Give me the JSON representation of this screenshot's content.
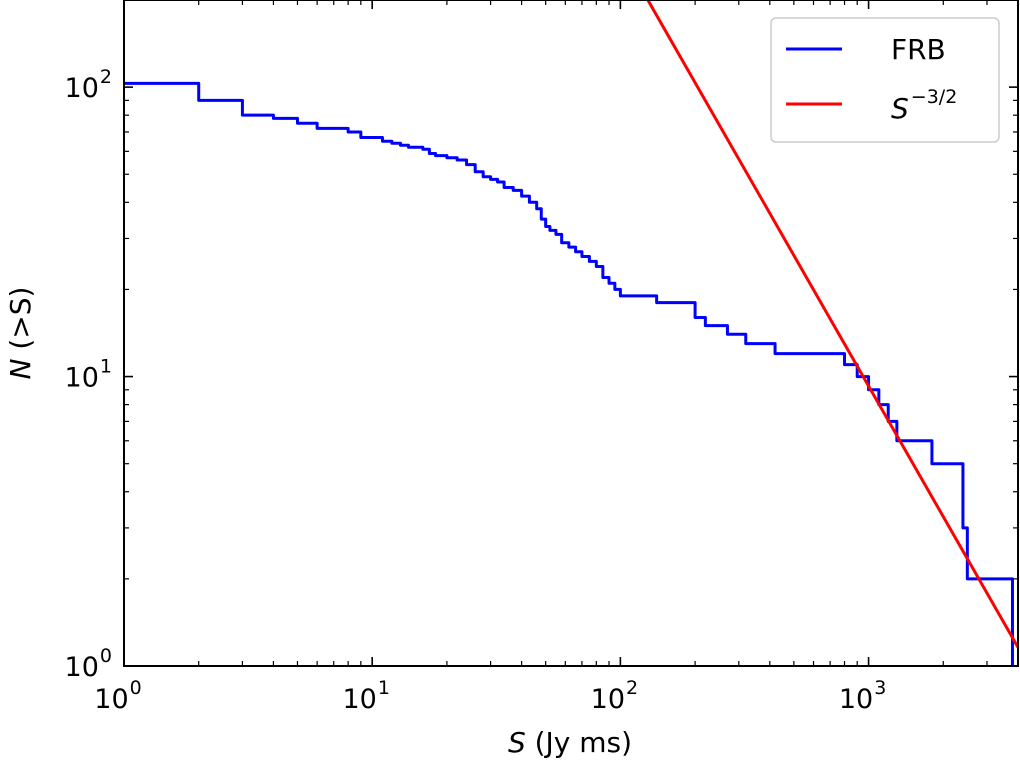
{
  "chart_data": {
    "type": "line",
    "xscale": "log",
    "yscale": "log",
    "xlim": [
      1,
      4000
    ],
    "ylim": [
      1,
      200
    ],
    "xlabel": {
      "italic": "S",
      "rest": " (Jy ms)"
    },
    "ylabel": {
      "italic": "N",
      "rest": " (>S)"
    },
    "x_ticks": [
      {
        "value": 1,
        "base": "10",
        "exp": "0"
      },
      {
        "value": 10,
        "base": "10",
        "exp": "1"
      },
      {
        "value": 100,
        "base": "10",
        "exp": "2"
      },
      {
        "value": 1000,
        "base": "10",
        "exp": "3"
      }
    ],
    "y_ticks": [
      {
        "value": 1,
        "base": "10",
        "exp": "0"
      },
      {
        "value": 10,
        "base": "10",
        "exp": "1"
      },
      {
        "value": 100,
        "base": "10",
        "exp": "2"
      }
    ],
    "legend": {
      "position": "top-right"
    },
    "series": [
      {
        "name": "FRB",
        "color": "#0000ff",
        "style": "step",
        "x": [
          1,
          2,
          3,
          4,
          5,
          6,
          7,
          8,
          9,
          10,
          11,
          12,
          13,
          14,
          16,
          17,
          18,
          20,
          22,
          24,
          26,
          28,
          30,
          32,
          34,
          37,
          40,
          43,
          46,
          48,
          50,
          52,
          55,
          58,
          62,
          66,
          70,
          75,
          80,
          85,
          90,
          95,
          100,
          110,
          120,
          140,
          160,
          180,
          200,
          220,
          270,
          320,
          420,
          800,
          900,
          1000,
          1100,
          1200,
          1300,
          1800,
          2400,
          2500,
          3800
        ],
        "y": [
          103,
          90,
          80,
          78,
          75,
          72,
          72,
          70,
          67,
          67,
          65,
          64,
          63,
          62,
          61,
          59,
          58,
          57,
          56,
          54,
          51,
          49,
          48,
          47,
          45,
          44,
          42,
          40,
          38,
          35,
          33,
          32,
          31,
          29,
          28,
          27,
          26,
          25,
          24,
          22,
          21,
          20,
          19,
          19,
          19,
          18,
          18,
          18,
          16,
          15,
          14,
          13,
          12,
          11,
          10,
          9,
          8,
          7,
          6,
          5,
          3,
          2,
          1
        ]
      },
      {
        "name": "S",
        "name_sup": "−3/2",
        "color": "#ff0000",
        "style": "line",
        "x": [
          129,
          4000
        ],
        "y": [
          200,
          1.16
        ]
      }
    ]
  }
}
